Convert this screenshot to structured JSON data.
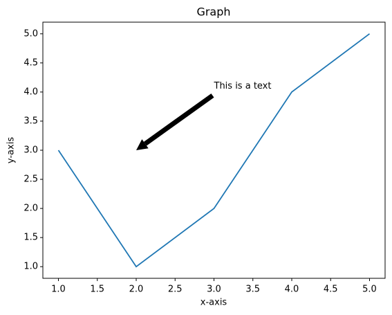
{
  "chart_data": {
    "type": "line",
    "title": "Graph",
    "x_label": "x-axis",
    "y_label": "y-axis",
    "x": [
      1,
      2,
      3,
      4,
      5
    ],
    "values": [
      3,
      1,
      2,
      4,
      5
    ],
    "color": "#1f77b4",
    "xlim": [
      0.8,
      5.2
    ],
    "ylim": [
      0.8,
      5.2
    ],
    "xticks": [
      {
        "value": 1,
        "label": "1.0"
      },
      1.5,
      {
        "value": 2,
        "label": "2.0"
      },
      2.5,
      {
        "value": 3,
        "label": "3.0"
      },
      3.5,
      {
        "value": 4,
        "label": "4.0"
      },
      4.5,
      {
        "value": 5,
        "label": "5.0"
      }
    ],
    "yticks": [
      {
        "value": 1,
        "label": "1.0"
      },
      1.5,
      {
        "value": 2,
        "label": "2.0"
      },
      2.5,
      {
        "value": 3,
        "label": "3.0"
      },
      3.5,
      {
        "value": 4,
        "label": "4.0"
      },
      4.5,
      {
        "value": 5,
        "label": "5.0"
      }
    ],
    "grid": false,
    "annotation": {
      "text": "This is a text",
      "xy": [
        2,
        3
      ],
      "xytext": [
        3,
        4
      ],
      "arrow_color": "#000000"
    }
  }
}
